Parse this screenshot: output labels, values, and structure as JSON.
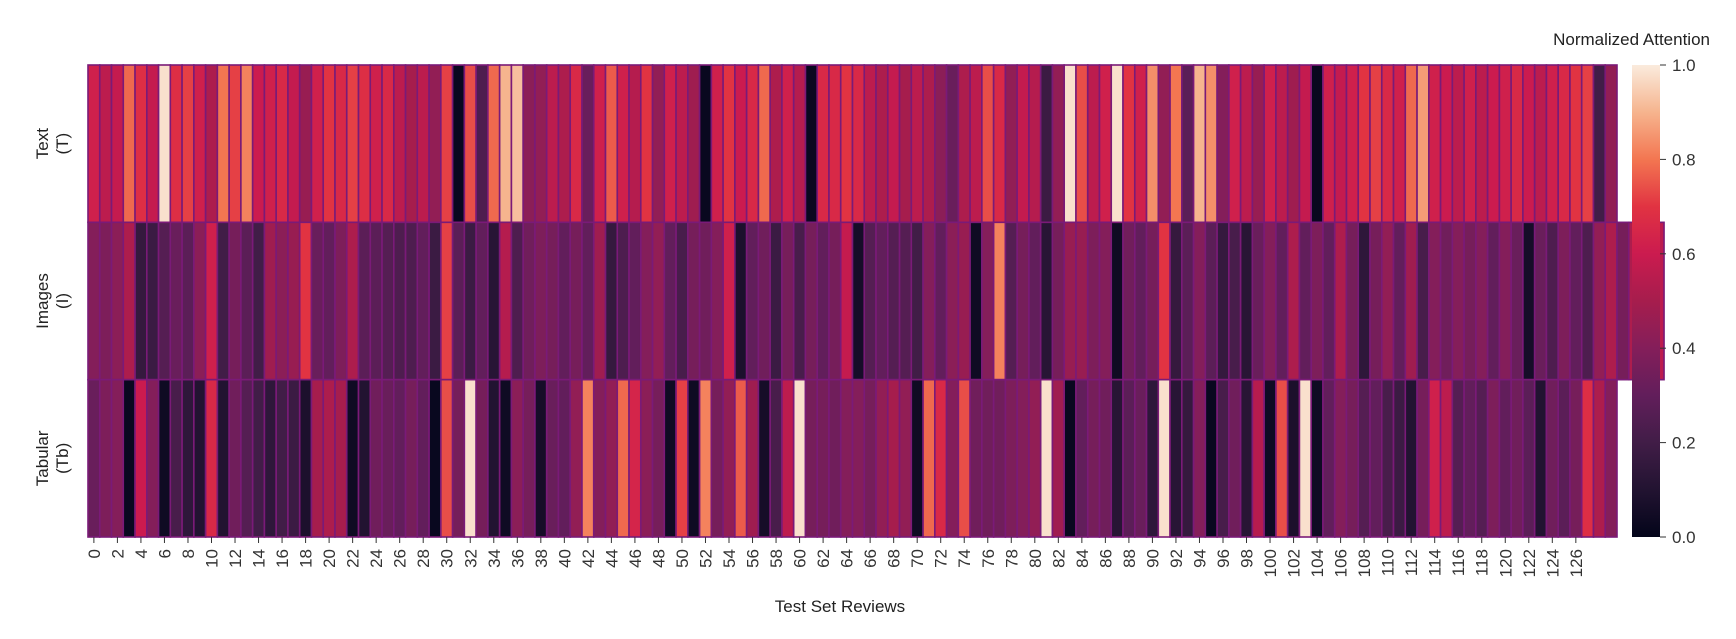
{
  "chart_data": {
    "type": "heatmap",
    "title": "",
    "xlabel": "Test Set Reviews",
    "ylabel": "",
    "rows": [
      "Text\n(T)",
      "Images\n(I)",
      "Tabular\n(Tb)"
    ],
    "x_ticks": [
      0,
      2,
      4,
      6,
      8,
      10,
      12,
      14,
      16,
      18,
      20,
      22,
      24,
      26,
      28,
      30,
      32,
      34,
      36,
      38,
      40,
      42,
      44,
      46,
      48,
      50,
      52,
      54,
      56,
      58,
      60,
      62,
      64,
      66,
      68,
      70,
      72,
      74,
      76,
      78,
      80,
      82,
      84,
      86,
      88,
      90,
      92,
      94,
      96,
      98,
      100,
      102,
      104,
      106,
      108,
      110,
      112,
      114,
      116,
      118,
      120,
      122,
      124,
      126
    ],
    "colorbar": {
      "title": "Normalized Attention",
      "range": [
        0,
        1
      ],
      "ticks": [
        "0.0",
        "0.2",
        "0.4",
        "0.6",
        "0.8",
        "1.0"
      ],
      "colormap": "rocket"
    },
    "values": [
      [
        0.62,
        0.56,
        0.58,
        0.78,
        0.68,
        0.58,
        0.98,
        0.68,
        0.72,
        0.62,
        0.52,
        0.8,
        0.72,
        0.82,
        0.6,
        0.62,
        0.66,
        0.58,
        0.46,
        0.62,
        0.7,
        0.66,
        0.72,
        0.68,
        0.62,
        0.66,
        0.56,
        0.5,
        0.56,
        0.44,
        0.72,
        0.02,
        0.74,
        0.24,
        0.78,
        0.9,
        0.92,
        0.42,
        0.44,
        0.56,
        0.52,
        0.66,
        0.32,
        0.62,
        0.76,
        0.62,
        0.54,
        0.7,
        0.44,
        0.62,
        0.56,
        0.48,
        0.02,
        0.62,
        0.7,
        0.6,
        0.66,
        0.78,
        0.52,
        0.62,
        0.54,
        0.02,
        0.66,
        0.66,
        0.7,
        0.66,
        0.56,
        0.52,
        0.58,
        0.5,
        0.56,
        0.52,
        0.42,
        0.32,
        0.52,
        0.56,
        0.74,
        0.66,
        0.44,
        0.58,
        0.54,
        0.18,
        0.44,
        0.98,
        0.74,
        0.56,
        0.62,
        0.98,
        0.7,
        0.62,
        0.84,
        0.44,
        0.8,
        0.28,
        0.9,
        0.84,
        0.4,
        0.62,
        0.56,
        0.46,
        0.62,
        0.56,
        0.48,
        0.58,
        0.02,
        0.62,
        0.58,
        0.62,
        0.7,
        0.72,
        0.66,
        0.62,
        0.78,
        0.86,
        0.62,
        0.6,
        0.56,
        0.62,
        0.56,
        0.6,
        0.62,
        0.66,
        0.6,
        0.56,
        0.62,
        0.66,
        0.7,
        0.72,
        0.2,
        0.44
      ],
      [
        0.4,
        0.38,
        0.42,
        0.52,
        0.16,
        0.18,
        0.26,
        0.32,
        0.28,
        0.42,
        0.62,
        0.2,
        0.36,
        0.28,
        0.2,
        0.48,
        0.42,
        0.46,
        0.7,
        0.32,
        0.3,
        0.38,
        0.52,
        0.28,
        0.28,
        0.26,
        0.24,
        0.24,
        0.3,
        0.18,
        0.72,
        0.28,
        0.18,
        0.3,
        0.12,
        0.54,
        0.24,
        0.34,
        0.38,
        0.36,
        0.3,
        0.36,
        0.3,
        0.48,
        0.16,
        0.24,
        0.3,
        0.4,
        0.44,
        0.3,
        0.22,
        0.36,
        0.34,
        0.4,
        0.62,
        0.08,
        0.3,
        0.34,
        0.18,
        0.36,
        0.22,
        0.36,
        0.3,
        0.36,
        0.58,
        0.06,
        0.26,
        0.3,
        0.26,
        0.26,
        0.2,
        0.4,
        0.3,
        0.42,
        0.46,
        0.04,
        0.4,
        0.82,
        0.26,
        0.36,
        0.3,
        0.12,
        0.36,
        0.46,
        0.46,
        0.38,
        0.4,
        0.04,
        0.34,
        0.3,
        0.36,
        0.7,
        0.16,
        0.28,
        0.4,
        0.28,
        0.16,
        0.22,
        0.12,
        0.32,
        0.4,
        0.3,
        0.52,
        0.3,
        0.38,
        0.3,
        0.52,
        0.36,
        0.14,
        0.36,
        0.44,
        0.3,
        0.48,
        0.22,
        0.4,
        0.34,
        0.4,
        0.36,
        0.4,
        0.3,
        0.4,
        0.32,
        0.06,
        0.32,
        0.24,
        0.38,
        0.3,
        0.24,
        0.44,
        0.52,
        0.36,
        0.52,
        0.48,
        0.56
      ],
      [
        0.32,
        0.38,
        0.4,
        0.02,
        0.6,
        0.4,
        0.04,
        0.22,
        0.14,
        0.1,
        0.66,
        0.1,
        0.34,
        0.26,
        0.2,
        0.14,
        0.2,
        0.18,
        0.08,
        0.5,
        0.52,
        0.5,
        0.04,
        0.1,
        0.34,
        0.32,
        0.3,
        0.36,
        0.3,
        0.02,
        0.74,
        0.36,
        0.98,
        0.36,
        0.1,
        0.04,
        0.42,
        0.36,
        0.06,
        0.32,
        0.3,
        0.44,
        0.82,
        0.4,
        0.44,
        0.78,
        0.64,
        0.42,
        0.36,
        0.04,
        0.72,
        0.04,
        0.82,
        0.36,
        0.44,
        0.76,
        0.48,
        0.06,
        0.22,
        0.56,
        0.98,
        0.36,
        0.36,
        0.34,
        0.4,
        0.4,
        0.36,
        0.44,
        0.5,
        0.44,
        0.04,
        0.78,
        0.66,
        0.4,
        0.74,
        0.34,
        0.34,
        0.34,
        0.38,
        0.4,
        0.44,
        0.98,
        0.48,
        0.02,
        0.3,
        0.36,
        0.34,
        0.12,
        0.28,
        0.32,
        0.14,
        0.98,
        0.12,
        0.16,
        0.4,
        0.02,
        0.22,
        0.34,
        0.12,
        0.54,
        0.04,
        0.74,
        0.08,
        0.98,
        0.04,
        0.3,
        0.4,
        0.36,
        0.26,
        0.3,
        0.22,
        0.18,
        0.1,
        0.36,
        0.62,
        0.56,
        0.26,
        0.3,
        0.26,
        0.38,
        0.3,
        0.34,
        0.28,
        0.1,
        0.34,
        0.28,
        0.36,
        0.68,
        0.52,
        0.4
      ]
    ]
  }
}
